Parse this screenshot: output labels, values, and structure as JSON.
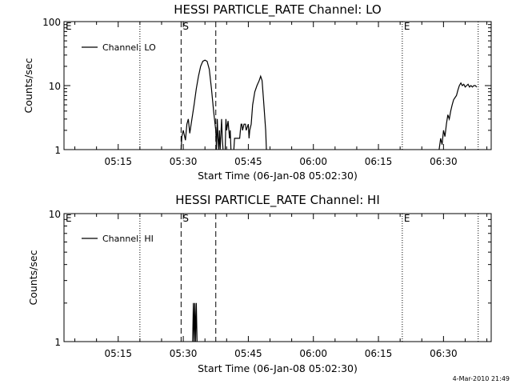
{
  "figure": {
    "footer_timestamp": "4-Mar-2010 21:49",
    "colors": {
      "background": "#ffffff",
      "foreground": "#000000"
    }
  },
  "chart_data": [
    {
      "type": "line",
      "title": "HESSI PARTICLE_RATE Channel: LO",
      "xlabel": "Start Time (06-Jan-08 05:02:30)",
      "ylabel": "Counts/sec",
      "yscale": "log",
      "xlim": [
        "05:02:30",
        "06:41:00"
      ],
      "ylim": [
        1,
        100
      ],
      "x_ticks": [
        "05:15",
        "05:30",
        "05:45",
        "06:00",
        "06:15",
        "06:30"
      ],
      "y_ticks": [
        "1",
        "10",
        "100"
      ],
      "legend": {
        "position": "top-left",
        "entries": [
          "Channel: LO"
        ]
      },
      "markers": [
        {
          "label": "E",
          "time": "05:02:30",
          "style": "none"
        },
        {
          "label": "",
          "time": "05:20:00",
          "style": "dotted"
        },
        {
          "label": "S",
          "time": "05:29:30",
          "style": "dashed"
        },
        {
          "label": "",
          "time": "05:37:30",
          "style": "dashed"
        },
        {
          "label": "E",
          "time": "06:20:30",
          "style": "dotted"
        },
        {
          "label": "",
          "time": "06:38:00",
          "style": "dotted"
        }
      ],
      "series": [
        {
          "name": "Channel: LO",
          "segments": [
            [
              [
                "05:29:30",
                1
              ],
              [
                "05:29:40",
                1.6
              ],
              [
                "05:30:00",
                2
              ],
              [
                "05:30:30",
                1.4
              ],
              [
                "05:30:50",
                2.5
              ],
              [
                "05:31:10",
                3
              ],
              [
                "05:31:30",
                1.8
              ],
              [
                "05:32:00",
                3
              ],
              [
                "05:32:30",
                5
              ],
              [
                "05:33:00",
                9
              ],
              [
                "05:33:30",
                14
              ],
              [
                "05:34:00",
                20
              ],
              [
                "05:34:30",
                24
              ],
              [
                "05:35:00",
                25
              ],
              [
                "05:35:30",
                24
              ],
              [
                "05:36:00",
                18
              ],
              [
                "05:36:30",
                9
              ],
              [
                "05:37:00",
                4
              ],
              [
                "05:37:30",
                2
              ],
              [
                "05:37:40",
                1
              ],
              [
                "05:37:50",
                3
              ],
              [
                "05:38:00",
                1.5
              ],
              [
                "05:38:10",
                1
              ],
              [
                "05:38:20",
                2
              ],
              [
                "05:38:30",
                1
              ],
              [
                "05:38:50",
                3
              ],
              [
                "05:39:00",
                1.5
              ],
              [
                "05:39:10",
                1
              ]
            ],
            [
              [
                "05:39:40",
                1
              ],
              [
                "05:39:50",
                3
              ],
              [
                "05:40:00",
                2
              ],
              [
                "05:40:20",
                2.8
              ],
              [
                "05:40:40",
                1.5
              ],
              [
                "05:40:50",
                2
              ],
              [
                "05:41:00",
                1
              ]
            ],
            [
              [
                "05:41:40",
                1
              ],
              [
                "05:41:50",
                1.5
              ],
              [
                "05:42:00",
                1.5
              ],
              [
                "05:43:00",
                1.5
              ],
              [
                "05:43:10",
                2
              ],
              [
                "05:43:20",
                2.5
              ],
              [
                "05:43:30",
                2.5
              ],
              [
                "05:43:40",
                2
              ],
              [
                "05:44:00",
                2.5
              ],
              [
                "05:44:20",
                2.5
              ],
              [
                "05:44:30",
                2
              ],
              [
                "05:45:00",
                2.5
              ],
              [
                "05:45:10",
                1.5
              ],
              [
                "05:45:20",
                2
              ],
              [
                "05:45:40",
                2.5
              ],
              [
                "05:46:00",
                5
              ],
              [
                "05:46:30",
                8
              ],
              [
                "05:47:00",
                10
              ],
              [
                "05:47:30",
                12
              ],
              [
                "05:47:50",
                14
              ],
              [
                "05:48:10",
                12
              ],
              [
                "05:48:30",
                6
              ],
              [
                "05:49:00",
                2
              ],
              [
                "05:49:10",
                1
              ]
            ],
            [
              [
                "06:29:00",
                1
              ],
              [
                "06:29:20",
                1.5
              ],
              [
                "06:29:40",
                1.2
              ],
              [
                "06:30:00",
                2
              ],
              [
                "06:30:20",
                1.6
              ],
              [
                "06:30:40",
                2.5
              ],
              [
                "06:31:00",
                3.5
              ],
              [
                "06:31:20",
                3
              ],
              [
                "06:31:40",
                4
              ],
              [
                "06:32:00",
                5
              ],
              [
                "06:32:20",
                6
              ],
              [
                "06:32:40",
                6.5
              ],
              [
                "06:33:00",
                7
              ],
              [
                "06:33:20",
                8.5
              ],
              [
                "06:33:40",
                10
              ],
              [
                "06:34:00",
                11
              ],
              [
                "06:34:20",
                10
              ],
              [
                "06:34:40",
                10.5
              ],
              [
                "06:35:00",
                9.5
              ],
              [
                "06:35:20",
                10
              ],
              [
                "06:35:40",
                10.5
              ],
              [
                "06:36:00",
                9.5
              ],
              [
                "06:36:20",
                10
              ],
              [
                "06:36:40",
                9.5
              ],
              [
                "06:37:00",
                10
              ],
              [
                "06:37:20",
                10
              ],
              [
                "06:37:40",
                9.5
              ]
            ]
          ]
        }
      ]
    },
    {
      "type": "line",
      "title": "HESSI PARTICLE_RATE Channel: HI",
      "xlabel": "Start Time (06-Jan-08 05:02:30)",
      "ylabel": "Counts/sec",
      "yscale": "log",
      "xlim": [
        "05:02:30",
        "06:41:00"
      ],
      "ylim": [
        1,
        10
      ],
      "x_ticks": [
        "05:15",
        "05:30",
        "05:45",
        "06:00",
        "06:15",
        "06:30"
      ],
      "y_ticks": [
        "1",
        "10"
      ],
      "legend": {
        "position": "top-left",
        "entries": [
          "Channel: HI"
        ]
      },
      "markers": [
        {
          "label": "E",
          "time": "05:02:30",
          "style": "none"
        },
        {
          "label": "",
          "time": "05:20:00",
          "style": "dotted"
        },
        {
          "label": "S",
          "time": "05:29:30",
          "style": "dashed"
        },
        {
          "label": "",
          "time": "05:37:30",
          "style": "dashed"
        },
        {
          "label": "E",
          "time": "06:20:30",
          "style": "dotted"
        },
        {
          "label": "",
          "time": "06:38:00",
          "style": "dotted"
        }
      ],
      "series": [
        {
          "name": "Channel: HI",
          "segments": [
            [
              [
                "05:32:10",
                1
              ],
              [
                "05:32:20",
                2
              ],
              [
                "05:32:30",
                1
              ],
              [
                "05:32:40",
                2
              ],
              [
                "05:32:50",
                1
              ],
              [
                "05:33:00",
                2
              ],
              [
                "05:33:10",
                1
              ]
            ]
          ]
        }
      ]
    }
  ]
}
